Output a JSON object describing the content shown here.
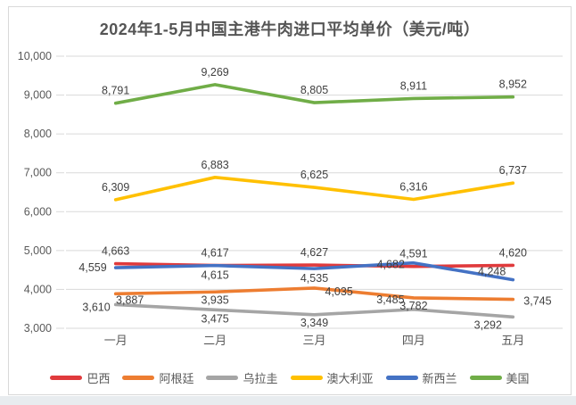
{
  "page": {
    "bottom_strip_color": "#e8ecef"
  },
  "chart_data": {
    "type": "line",
    "title": "2024年1-5月中国主港牛肉进口平均单价（美元/吨）",
    "categories": [
      "一月",
      "二月",
      "三月",
      "四月",
      "五月"
    ],
    "series": [
      {
        "name": "巴西",
        "color": "#E03A3C",
        "values": [
          4663,
          4617,
          4627,
          4591,
          4620
        ],
        "label_offsets": [
          [
            0,
            -10,
            "middle"
          ],
          [
            0,
            -10,
            "middle"
          ],
          [
            0,
            -10,
            "middle"
          ],
          [
            0,
            -10,
            "middle"
          ],
          [
            0,
            -10,
            "middle"
          ]
        ]
      },
      {
        "name": "阿根廷",
        "color": "#ED7D31",
        "values": [
          3887,
          3935,
          4035,
          3782,
          3745
        ],
        "label_offsets": [
          [
            16,
            11,
            "middle"
          ],
          [
            0,
            13,
            "middle"
          ],
          [
            12,
            8,
            "start"
          ],
          [
            0,
            13,
            "middle"
          ],
          [
            12,
            6,
            "start"
          ]
        ]
      },
      {
        "name": "乌拉圭",
        "color": "#A5A5A5",
        "values": [
          3610,
          3475,
          3349,
          3485,
          3292
        ],
        "label_offsets": [
          [
            -6,
            7,
            "end"
          ],
          [
            0,
            14,
            "middle"
          ],
          [
            0,
            13,
            "middle"
          ],
          [
            -26,
            -7,
            "middle"
          ],
          [
            -28,
            13,
            "middle"
          ]
        ]
      },
      {
        "name": "澳大利亚",
        "color": "#FFC000",
        "values": [
          6309,
          6883,
          6625,
          6316,
          6737
        ],
        "label_offsets": [
          [
            0,
            -10,
            "middle"
          ],
          [
            0,
            -10,
            "middle"
          ],
          [
            0,
            -10,
            "middle"
          ],
          [
            0,
            -10,
            "middle"
          ],
          [
            0,
            -10,
            "middle"
          ]
        ]
      },
      {
        "name": "新西兰",
        "color": "#4472C4",
        "values": [
          4559,
          4615,
          4535,
          4682,
          4248
        ],
        "label_offsets": [
          [
            -10,
            4,
            "end"
          ],
          [
            0,
            15,
            "middle"
          ],
          [
            0,
            15,
            "middle"
          ],
          [
            -10,
            6,
            "end"
          ],
          [
            -8,
            -5,
            "end"
          ]
        ]
      },
      {
        "name": "美国",
        "color": "#70AD47",
        "values": [
          8791,
          9269,
          8805,
          8911,
          8952
        ],
        "label_offsets": [
          [
            0,
            -10,
            "middle"
          ],
          [
            0,
            -10,
            "middle"
          ],
          [
            0,
            -10,
            "middle"
          ],
          [
            0,
            -10,
            "middle"
          ],
          [
            0,
            -10,
            "middle"
          ]
        ]
      }
    ],
    "ylim": [
      3000,
      10000
    ],
    "ytick_step": 1000,
    "grid": true,
    "legend_position": "bottom"
  }
}
